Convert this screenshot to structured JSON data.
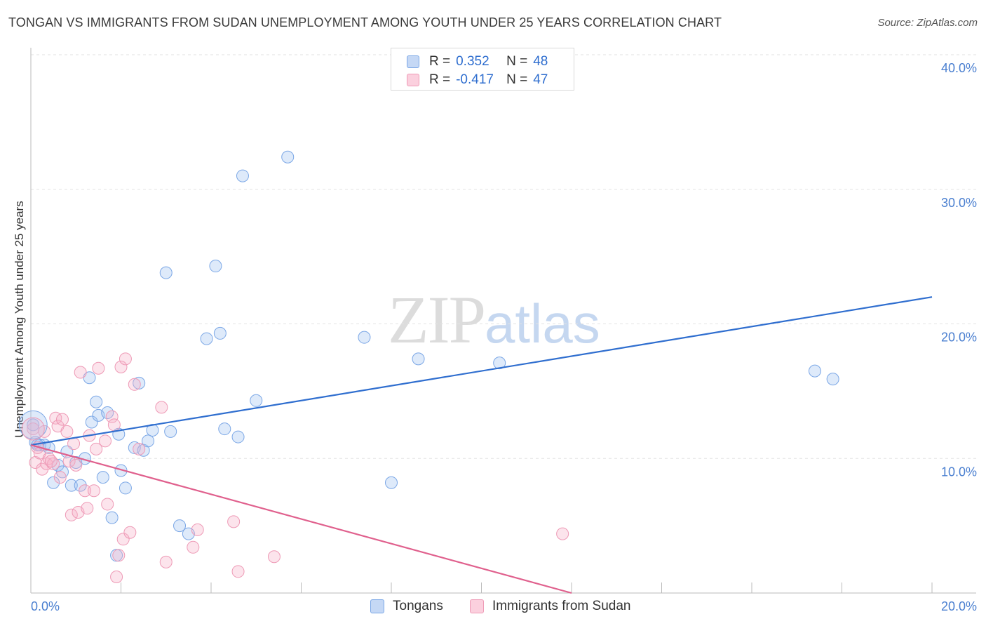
{
  "title": "TONGAN VS IMMIGRANTS FROM SUDAN UNEMPLOYMENT AMONG YOUTH UNDER 25 YEARS CORRELATION CHART",
  "source": "Source: ZipAtlas.com",
  "watermark": {
    "zip": "ZIP",
    "atlas": "atlas"
  },
  "legend": {
    "row1": {
      "r_label": "R =",
      "r_value": "0.352",
      "n_label": "N =",
      "n_value": "48",
      "color": "#7ba7e6"
    },
    "row2": {
      "r_label": "R =",
      "r_value": "-0.417",
      "n_label": "N =",
      "n_value": "47",
      "color": "#ee9ab6"
    }
  },
  "bottom_legend": {
    "series1": "Tongans",
    "series2": "Immigrants from Sudan"
  },
  "chart_data": {
    "type": "scatter",
    "title": "TONGAN VS IMMIGRANTS FROM SUDAN UNEMPLOYMENT AMONG YOUTH UNDER 25 YEARS CORRELATION CHART",
    "xlabel": "",
    "ylabel": "Unemployment Among Youth under 25 years",
    "xlim": [
      0,
      20
    ],
    "ylim": [
      0,
      40
    ],
    "x_tick_labels": [
      "0.0%",
      "20.0%"
    ],
    "y_ticks": [
      10,
      20,
      30,
      40
    ],
    "y_tick_labels": [
      "10.0%",
      "20.0%",
      "30.0%",
      "40.0%"
    ],
    "grid": true,
    "series": [
      {
        "name": "Tongans",
        "color": "#7ba7e6",
        "line_color": "#2f6ecf",
        "trend": [
          [
            0,
            11.0
          ],
          [
            20,
            22.0
          ]
        ],
        "points": [
          [
            0.05,
            12.5
          ],
          [
            0.1,
            11.2
          ],
          [
            0.2,
            11.0
          ],
          [
            0.3,
            11.0
          ],
          [
            0.4,
            10.8
          ],
          [
            0.5,
            8.2
          ],
          [
            0.6,
            9.5
          ],
          [
            0.7,
            9.0
          ],
          [
            0.8,
            10.5
          ],
          [
            0.9,
            8.0
          ],
          [
            1.0,
            9.7
          ],
          [
            1.1,
            8.0
          ],
          [
            1.2,
            10.0
          ],
          [
            1.3,
            16.0
          ],
          [
            1.35,
            12.7
          ],
          [
            1.45,
            14.2
          ],
          [
            1.5,
            13.2
          ],
          [
            1.6,
            8.6
          ],
          [
            1.7,
            13.4
          ],
          [
            1.8,
            5.6
          ],
          [
            1.9,
            2.8
          ],
          [
            1.95,
            11.8
          ],
          [
            2.0,
            9.1
          ],
          [
            2.1,
            7.8
          ],
          [
            2.3,
            10.8
          ],
          [
            2.4,
            15.6
          ],
          [
            2.5,
            10.6
          ],
          [
            2.6,
            11.3
          ],
          [
            2.7,
            12.1
          ],
          [
            3.0,
            23.8
          ],
          [
            3.1,
            12.0
          ],
          [
            3.3,
            5.0
          ],
          [
            3.5,
            4.4
          ],
          [
            3.9,
            18.9
          ],
          [
            4.1,
            24.3
          ],
          [
            4.2,
            19.3
          ],
          [
            4.3,
            12.2
          ],
          [
            4.6,
            11.6
          ],
          [
            4.7,
            31.0
          ],
          [
            5.0,
            14.3
          ],
          [
            5.7,
            32.4
          ],
          [
            7.4,
            19.0
          ],
          [
            8.0,
            8.2
          ],
          [
            8.6,
            17.4
          ],
          [
            10.4,
            17.1
          ],
          [
            17.4,
            16.5
          ],
          [
            17.8,
            15.9
          ],
          [
            0.15,
            11.0
          ]
        ]
      },
      {
        "name": "Immigrants from Sudan",
        "color": "#ee9ab6",
        "line_color": "#e0608d",
        "trend": [
          [
            0,
            11.0
          ],
          [
            12.0,
            0
          ]
        ],
        "points": [
          [
            0.05,
            12.2
          ],
          [
            0.1,
            9.7
          ],
          [
            0.2,
            10.4
          ],
          [
            0.25,
            9.2
          ],
          [
            0.3,
            12.0
          ],
          [
            0.35,
            9.6
          ],
          [
            0.4,
            10.0
          ],
          [
            0.5,
            9.6
          ],
          [
            0.55,
            13.0
          ],
          [
            0.6,
            12.4
          ],
          [
            0.65,
            8.6
          ],
          [
            0.7,
            12.9
          ],
          [
            0.8,
            12.0
          ],
          [
            0.85,
            9.8
          ],
          [
            0.9,
            5.8
          ],
          [
            0.95,
            11.1
          ],
          [
            1.0,
            9.5
          ],
          [
            1.05,
            6.0
          ],
          [
            1.1,
            16.4
          ],
          [
            1.2,
            7.6
          ],
          [
            1.25,
            6.3
          ],
          [
            1.3,
            11.7
          ],
          [
            1.4,
            7.6
          ],
          [
            1.45,
            10.7
          ],
          [
            1.5,
            16.7
          ],
          [
            1.65,
            11.3
          ],
          [
            1.7,
            6.6
          ],
          [
            1.8,
            13.1
          ],
          [
            1.85,
            12.5
          ],
          [
            1.9,
            1.2
          ],
          [
            1.95,
            2.8
          ],
          [
            2.0,
            16.8
          ],
          [
            2.05,
            4.0
          ],
          [
            2.1,
            17.4
          ],
          [
            2.2,
            4.5
          ],
          [
            2.3,
            15.5
          ],
          [
            2.4,
            10.7
          ],
          [
            2.9,
            13.8
          ],
          [
            3.0,
            2.3
          ],
          [
            3.6,
            3.4
          ],
          [
            3.7,
            4.7
          ],
          [
            4.5,
            5.3
          ],
          [
            4.6,
            1.6
          ],
          [
            5.4,
            2.7
          ],
          [
            11.8,
            4.4
          ],
          [
            0.15,
            10.8
          ],
          [
            0.45,
            9.8
          ]
        ]
      }
    ]
  }
}
